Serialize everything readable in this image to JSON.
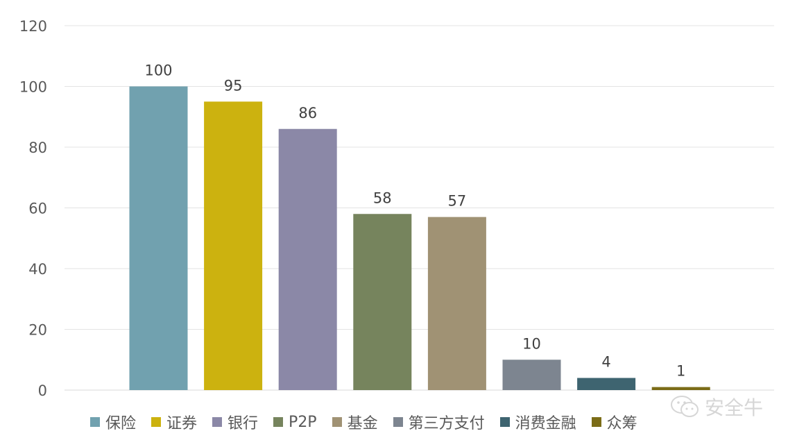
{
  "chart_data": {
    "type": "bar",
    "categories": [
      "保险",
      "证券",
      "银行",
      "P2P",
      "基金",
      "第三方支付",
      "消费金融",
      "众筹"
    ],
    "values": [
      100,
      95,
      86,
      58,
      57,
      10,
      4,
      1
    ],
    "colors": [
      "#71a1af",
      "#ccb20f",
      "#8b88a7",
      "#76845d",
      "#a09274",
      "#7d8590",
      "#3e6470",
      "#7b6c17"
    ],
    "yticks": [
      "0",
      "20",
      "40",
      "60",
      "80",
      "100",
      "120"
    ],
    "ylim": [
      0,
      120
    ],
    "grid": true,
    "legend_position": "bottom",
    "data_labels": [
      "100",
      "95",
      "86",
      "58",
      "57",
      "10",
      "4",
      "1"
    ]
  },
  "watermark": {
    "text": "安全牛",
    "icon": "wechat-icon"
  }
}
